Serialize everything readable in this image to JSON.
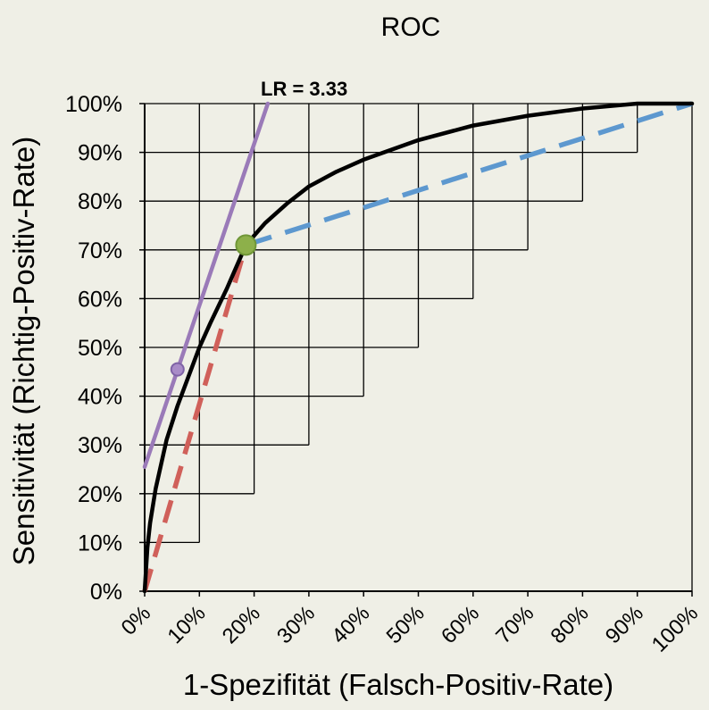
{
  "chart_data": {
    "type": "line",
    "title": "ROC",
    "xlabel": "1-Spezifität (Falsch-Positiv-Rate)",
    "ylabel": "Sensitivität (Richtig-Positiv-Rate)",
    "xlim": [
      0,
      100
    ],
    "ylim": [
      0,
      100
    ],
    "x_ticks": [
      "0%",
      "10%",
      "20%",
      "30%",
      "40%",
      "50%",
      "60%",
      "70%",
      "80%",
      "90%",
      "100%"
    ],
    "y_ticks": [
      "0%",
      "10%",
      "20%",
      "30%",
      "40%",
      "50%",
      "60%",
      "70%",
      "80%",
      "90%",
      "100%"
    ],
    "grid": "staircase",
    "annotation": "LR = 3.33",
    "series": [
      {
        "role": "roc-curve",
        "color": "#000000",
        "x": [
          0,
          0.5,
          1,
          2,
          3,
          4,
          6,
          8,
          10,
          12,
          15,
          18.5,
          22,
          26,
          30,
          35,
          40,
          50,
          60,
          70,
          80,
          90,
          100
        ],
        "y": [
          0,
          9,
          14,
          21,
          26,
          31,
          38,
          44,
          50,
          55,
          62,
          71,
          75.5,
          79.5,
          83,
          86,
          88.5,
          92.5,
          95.5,
          97.5,
          99,
          100,
          100
        ]
      },
      {
        "role": "dashed-to-point",
        "color": "#d0605a",
        "x": [
          0,
          18.5
        ],
        "y": [
          0,
          71
        ]
      },
      {
        "role": "dashed-from-point",
        "color": "#5d98cf",
        "x": [
          18.5,
          100
        ],
        "y": [
          71,
          100
        ]
      },
      {
        "role": "tangent-LR",
        "color": "#9a7ab8",
        "x": [
          0,
          22.5
        ],
        "y": [
          25.5,
          100
        ]
      }
    ],
    "points": [
      {
        "role": "operating-point",
        "x": 18.5,
        "y": 71,
        "color": "#8db04a"
      },
      {
        "role": "tangent-point",
        "x": 6,
        "y": 45.5,
        "color": "#a98cc8"
      }
    ],
    "colors": {
      "xlabel": "#5d98cf",
      "ylabel": "#d0605a",
      "annotation": "#9a7ab8"
    }
  }
}
